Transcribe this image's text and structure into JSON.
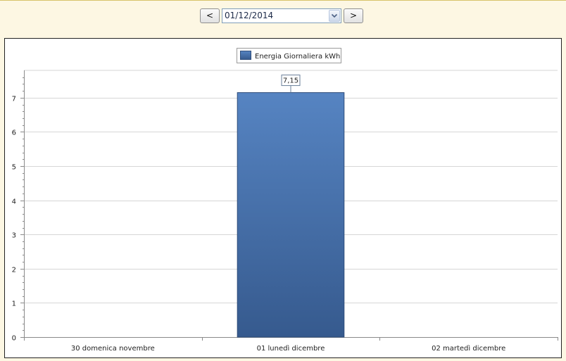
{
  "toolbar": {
    "prev_label": "<",
    "next_label": ">",
    "date_value": "01/12/2014"
  },
  "chart_data": {
    "type": "bar",
    "categories": [
      "30 domenica novembre",
      "01 lunedì dicembre",
      "02 martedì dicembre"
    ],
    "series": [
      {
        "name": "Energia Giornaliera kWh",
        "values": [
          0,
          7.15,
          0
        ]
      }
    ],
    "data_labels": [
      "",
      "7,15",
      ""
    ],
    "ylim": [
      0,
      7.8
    ],
    "yticks": [
      0,
      1,
      2,
      3,
      4,
      5,
      6,
      7
    ],
    "grid": true,
    "legend_position": "top-center",
    "colors": {
      "bar_top": "#5684c2",
      "bar_bottom": "#365a8e",
      "grid": "#d6d6d6",
      "axis": "#8a8a8a"
    }
  }
}
